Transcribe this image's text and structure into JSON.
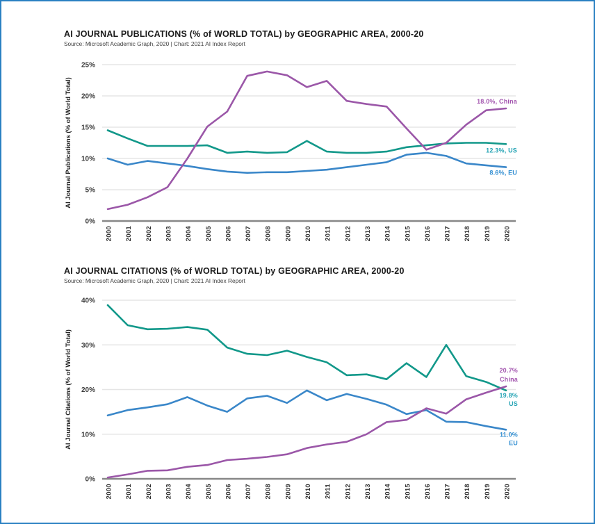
{
  "frame": {
    "border_color": "#2a80c2",
    "background": "#ffffff"
  },
  "colors": {
    "china_line": "#9b57a8",
    "us_line": "#12988a",
    "eu_line": "#3a87c9",
    "china_label": "#a254ae",
    "us_label": "#27a4b5",
    "eu_label": "#338fd2",
    "gridline": "#e5e5e5",
    "axis_line": "#878787",
    "title_text": "#1a1a1a"
  },
  "chart_data": [
    {
      "type": "line",
      "title": "AI JOURNAL PUBLICATIONS (% of WORLD TOTAL) by GEOGRAPHIC AREA, 2000-20",
      "source": "Source: Microsoft Academic Graph, 2020 | Chart: 2021 AI Index Report",
      "ylabel": "AI Journal Publications (% of World Total)",
      "xlabel": "",
      "grid": "horizontal",
      "legend_position": "line-end-right",
      "x": [
        2000,
        2001,
        2002,
        2003,
        2004,
        2005,
        2006,
        2007,
        2008,
        2009,
        2010,
        2011,
        2012,
        2013,
        2014,
        2015,
        2016,
        2017,
        2018,
        2019,
        2020
      ],
      "ylim": [
        0,
        25
      ],
      "ytick_values": [
        0,
        5,
        10,
        15,
        20,
        25
      ],
      "ytick_labels": [
        "0%",
        "5%",
        "10%",
        "15%",
        "20%",
        "25%"
      ],
      "series": [
        {
          "name": "China",
          "color": "#9b57a8",
          "label_color": "#a254ae",
          "end_label_lines": [
            "18.0%, China"
          ],
          "values": [
            1.9,
            2.6,
            3.8,
            5.4,
            10.0,
            15.1,
            17.5,
            23.2,
            23.9,
            23.3,
            21.4,
            22.4,
            19.2,
            18.7,
            18.3,
            14.8,
            11.4,
            12.5,
            15.4,
            17.7,
            18.0
          ]
        },
        {
          "name": "US",
          "color": "#12988a",
          "label_color": "#27a4b5",
          "end_label_lines": [
            "12.3%, US"
          ],
          "values": [
            14.5,
            13.2,
            12.0,
            12.0,
            12.0,
            12.1,
            10.9,
            11.1,
            10.9,
            11.0,
            12.8,
            11.1,
            10.9,
            10.9,
            11.1,
            11.8,
            12.1,
            12.4,
            12.5,
            12.5,
            12.3
          ]
        },
        {
          "name": "EU",
          "color": "#3a87c9",
          "label_color": "#338fd2",
          "end_label_lines": [
            "8.6%, EU"
          ],
          "values": [
            10.0,
            9.0,
            9.6,
            9.2,
            8.8,
            8.3,
            7.9,
            7.7,
            7.8,
            7.8,
            8.0,
            8.2,
            8.6,
            9.0,
            9.4,
            10.6,
            10.9,
            10.4,
            9.2,
            8.9,
            8.6
          ]
        }
      ]
    },
    {
      "type": "line",
      "title": "AI JOURNAL CITATIONS (% of WORLD TOTAL) by GEOGRAPHIC AREA, 2000-20",
      "source": "Source: Microsoft Academic Graph, 2020 | Chart: 2021 AI Index Report",
      "ylabel": "AI Journal Citations (% of World Total)",
      "xlabel": "",
      "grid": "horizontal",
      "legend_position": "line-end-right",
      "x": [
        2000,
        2001,
        2002,
        2003,
        2004,
        2005,
        2006,
        2007,
        2008,
        2009,
        2010,
        2011,
        2012,
        2013,
        2014,
        2015,
        2016,
        2017,
        2018,
        2019,
        2020
      ],
      "ylim": [
        0,
        40
      ],
      "ytick_values": [
        0,
        10,
        20,
        30,
        40
      ],
      "ytick_labels": [
        "0%",
        "10%",
        "20%",
        "30%",
        "40%"
      ],
      "series": [
        {
          "name": "China",
          "color": "#9b57a8",
          "label_color": "#a254ae",
          "end_label_lines": [
            "20.7%",
            "China"
          ],
          "values": [
            0.3,
            1.0,
            1.8,
            1.9,
            2.7,
            3.1,
            4.2,
            4.5,
            4.9,
            5.5,
            6.9,
            7.7,
            8.3,
            10.0,
            12.7,
            13.2,
            15.8,
            14.6,
            17.8,
            19.3,
            20.7
          ]
        },
        {
          "name": "US",
          "color": "#12988a",
          "label_color": "#27a4b5",
          "end_label_lines": [
            "19.8%",
            "US"
          ],
          "values": [
            38.9,
            34.4,
            33.5,
            33.6,
            34.0,
            33.4,
            29.4,
            28.0,
            27.7,
            28.7,
            27.3,
            26.1,
            23.2,
            23.4,
            22.3,
            25.9,
            22.8,
            30.0,
            23.0,
            21.7,
            19.8
          ]
        },
        {
          "name": "EU",
          "color": "#3a87c9",
          "label_color": "#338fd2",
          "end_label_lines": [
            "11.0%",
            "EU"
          ],
          "values": [
            14.2,
            15.4,
            16.0,
            16.7,
            18.3,
            16.4,
            15.0,
            18.0,
            18.6,
            17.0,
            19.8,
            17.6,
            19.0,
            17.9,
            16.6,
            14.5,
            15.4,
            12.8,
            12.7,
            11.8,
            11.0
          ]
        }
      ]
    }
  ]
}
